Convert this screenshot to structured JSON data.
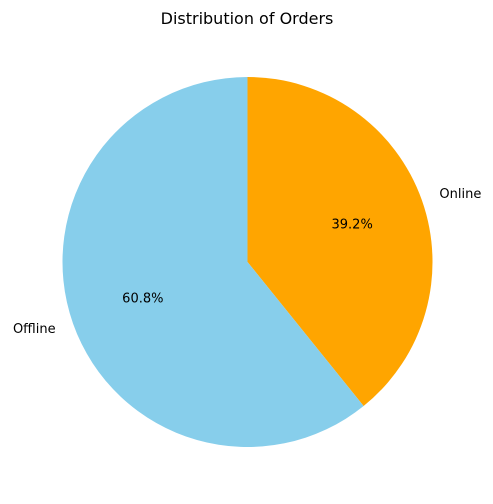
{
  "chart_data": {
    "type": "pie",
    "title": "Distribution of Orders",
    "slices": [
      {
        "label": "Online",
        "value": 39.2,
        "pct_label": "39.2%",
        "color": "#ffa500"
      },
      {
        "label": "Offline",
        "value": 60.8,
        "pct_label": "60.8%",
        "color": "#87ceeb"
      }
    ],
    "start_angle_deg": 90,
    "direction": "clockwise",
    "legend": "none"
  }
}
